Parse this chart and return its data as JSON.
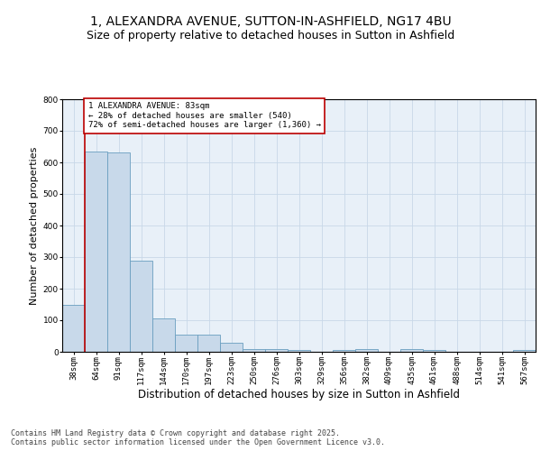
{
  "title_line1": "1, ALEXANDRA AVENUE, SUTTON-IN-ASHFIELD, NG17 4BU",
  "title_line2": "Size of property relative to detached houses in Sutton in Ashfield",
  "xlabel": "Distribution of detached houses by size in Sutton in Ashfield",
  "ylabel": "Number of detached properties",
  "bin_labels": [
    "38sqm",
    "64sqm",
    "91sqm",
    "117sqm",
    "144sqm",
    "170sqm",
    "197sqm",
    "223sqm",
    "250sqm",
    "276sqm",
    "303sqm",
    "329sqm",
    "356sqm",
    "382sqm",
    "409sqm",
    "435sqm",
    "461sqm",
    "488sqm",
    "514sqm",
    "541sqm",
    "567sqm"
  ],
  "bar_heights": [
    150,
    635,
    630,
    290,
    105,
    55,
    55,
    30,
    10,
    10,
    5,
    0,
    5,
    10,
    0,
    10,
    5,
    0,
    0,
    0,
    5
  ],
  "bar_color": "#c8d9ea",
  "bar_edge_color": "#6a9ec0",
  "vline_x_idx": 1,
  "vline_color": "#bb0000",
  "annotation_text": "1 ALEXANDRA AVENUE: 83sqm\n← 28% of detached houses are smaller (540)\n72% of semi-detached houses are larger (1,360) →",
  "annotation_box_color": "#ffffff",
  "annotation_box_edge": "#bb0000",
  "annotation_fontsize": 6.5,
  "ylim": [
    0,
    800
  ],
  "yticks": [
    0,
    100,
    200,
    300,
    400,
    500,
    600,
    700,
    800
  ],
  "grid_color": "#c8d8e8",
  "background_color": "#e8f0f8",
  "footnote": "Contains HM Land Registry data © Crown copyright and database right 2025.\nContains public sector information licensed under the Open Government Licence v3.0.",
  "title_fontsize": 10,
  "subtitle_fontsize": 9,
  "xlabel_fontsize": 8.5,
  "ylabel_fontsize": 8,
  "tick_fontsize": 6.5,
  "footnote_fontsize": 6.0
}
